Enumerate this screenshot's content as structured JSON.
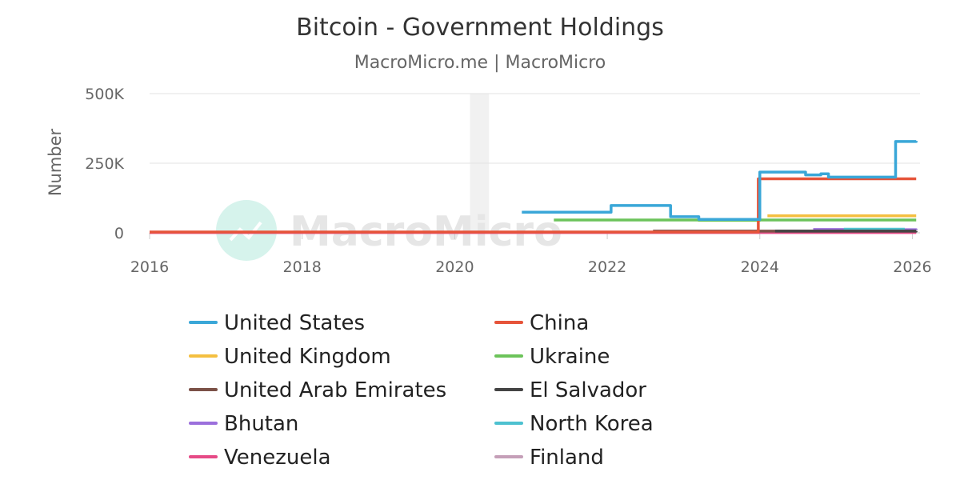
{
  "chart_data": {
    "type": "line",
    "title": "Bitcoin - Government Holdings",
    "subtitle": "MacroMicro.me | MacroMicro",
    "ylabel": "Number",
    "xlabel": "",
    "xlim": [
      2016.0,
      2026.1
    ],
    "ylim": [
      0,
      500000
    ],
    "x_ticks": [
      2016,
      2018,
      2020,
      2022,
      2024,
      2026
    ],
    "y_ticks": [
      {
        "v": 0,
        "label": "0"
      },
      {
        "v": 250000,
        "label": "250K"
      },
      {
        "v": 500000,
        "label": "500K"
      }
    ],
    "grid": true,
    "legend_position": "bottom",
    "watermark": "MacroMicro",
    "shaded_band": [
      2020.2,
      2020.45
    ],
    "series": [
      {
        "name": "United States",
        "color": "#3aa7d8",
        "step": true,
        "points": [
          [
            2020.88,
            74000
          ],
          [
            2022.05,
            74000
          ],
          [
            2022.05,
            98000
          ],
          [
            2022.83,
            98000
          ],
          [
            2022.83,
            58000
          ],
          [
            2023.2,
            58000
          ],
          [
            2023.2,
            48000
          ],
          [
            2024.0,
            48000
          ],
          [
            2024.0,
            218000
          ],
          [
            2024.6,
            215000
          ],
          [
            2024.6,
            208000
          ],
          [
            2024.8,
            208000
          ],
          [
            2024.8,
            212000
          ],
          [
            2024.9,
            212000
          ],
          [
            2024.9,
            200000
          ],
          [
            2025.78,
            200000
          ],
          [
            2025.78,
            328000
          ],
          [
            2026.05,
            330000
          ]
        ]
      },
      {
        "name": "China",
        "color": "#e6543a",
        "step": true,
        "points": [
          [
            2016.0,
            3000
          ],
          [
            2023.98,
            3000
          ],
          [
            2023.98,
            194000
          ],
          [
            2026.05,
            194000
          ]
        ]
      },
      {
        "name": "United Kingdom",
        "color": "#f4bf40",
        "step": true,
        "points": [
          [
            2024.1,
            61000
          ],
          [
            2026.05,
            61000
          ]
        ]
      },
      {
        "name": "Ukraine",
        "color": "#6cc35a",
        "step": true,
        "points": [
          [
            2021.3,
            46000
          ],
          [
            2023.2,
            46000
          ],
          [
            2023.2,
            45000
          ],
          [
            2024.0,
            45000
          ],
          [
            2024.0,
            46000
          ],
          [
            2026.05,
            46000
          ]
        ]
      },
      {
        "name": "United Arab Emirates",
        "color": "#7b5147",
        "step": true,
        "points": [
          [
            2022.6,
            6000
          ],
          [
            2026.05,
            6000
          ]
        ]
      },
      {
        "name": "El Salvador",
        "color": "#444444",
        "step": true,
        "points": [
          [
            2024.2,
            6000
          ],
          [
            2026.05,
            6500
          ]
        ]
      },
      {
        "name": "Bhutan",
        "color": "#9b6fdc",
        "step": true,
        "points": [
          [
            2024.7,
            12000
          ],
          [
            2025.3,
            11000
          ],
          [
            2026.05,
            10000
          ]
        ]
      },
      {
        "name": "North Korea",
        "color": "#4dc1d0",
        "step": true,
        "points": [
          [
            2025.1,
            13000
          ],
          [
            2025.9,
            13000
          ]
        ]
      },
      {
        "name": "Venezuela",
        "color": "#e64a86",
        "step": true,
        "points": [
          [
            2016.0,
            1000
          ],
          [
            2026.05,
            1000
          ]
        ]
      },
      {
        "name": "Finland",
        "color": "#c59fb8",
        "step": true,
        "points": [
          [
            2016.0,
            1500
          ],
          [
            2026.05,
            1500
          ]
        ]
      }
    ]
  }
}
